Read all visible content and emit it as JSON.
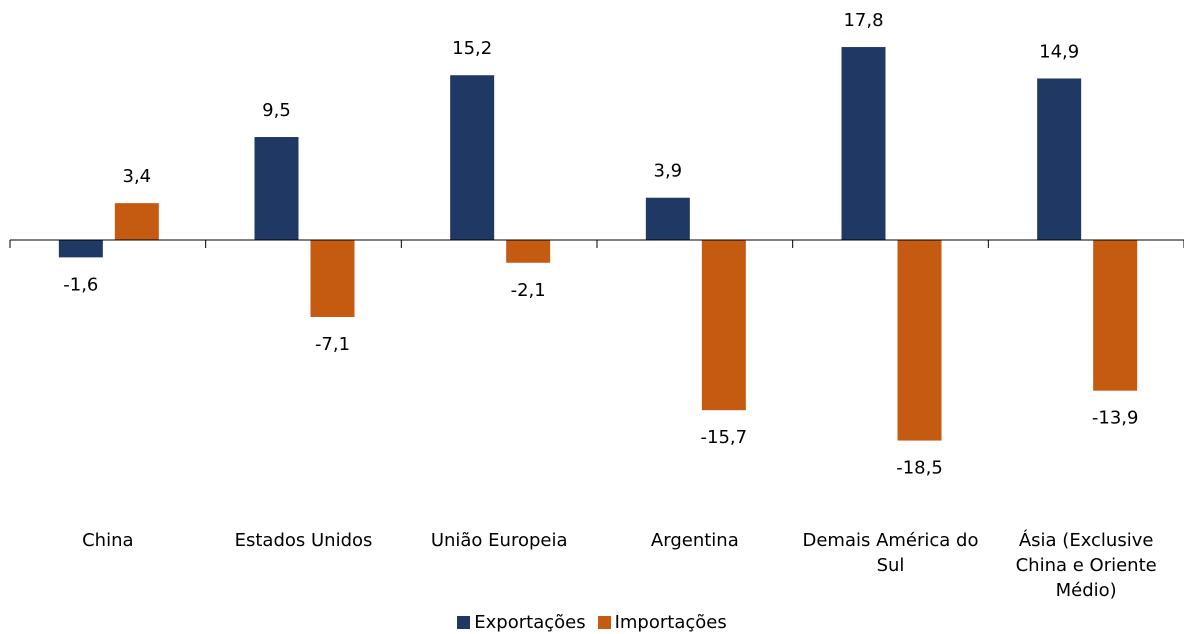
{
  "chart_data": {
    "type": "bar",
    "categories": [
      "China",
      "Estados Unidos",
      "União Europeia",
      "Argentina",
      "Demais América do Sul",
      "Ásia (Exclusive China e Oriente Médio)"
    ],
    "series": [
      {
        "name": "Exportações",
        "color": "#203864",
        "values": [
          -1.6,
          9.5,
          15.2,
          3.9,
          17.8,
          14.9
        ],
        "value_labels": [
          "-1,6",
          "9,5",
          "15,2",
          "3,9",
          "17,8",
          "14,9"
        ]
      },
      {
        "name": "Importações",
        "color": "#c55a11",
        "values": [
          3.4,
          -7.1,
          -2.1,
          -15.7,
          -18.5,
          -13.9
        ],
        "value_labels": [
          "3,4",
          "-7,1",
          "-2,1",
          "-15,7",
          "-18,5",
          "-13,9"
        ]
      }
    ],
    "ylim": [
      -22,
      20
    ]
  }
}
